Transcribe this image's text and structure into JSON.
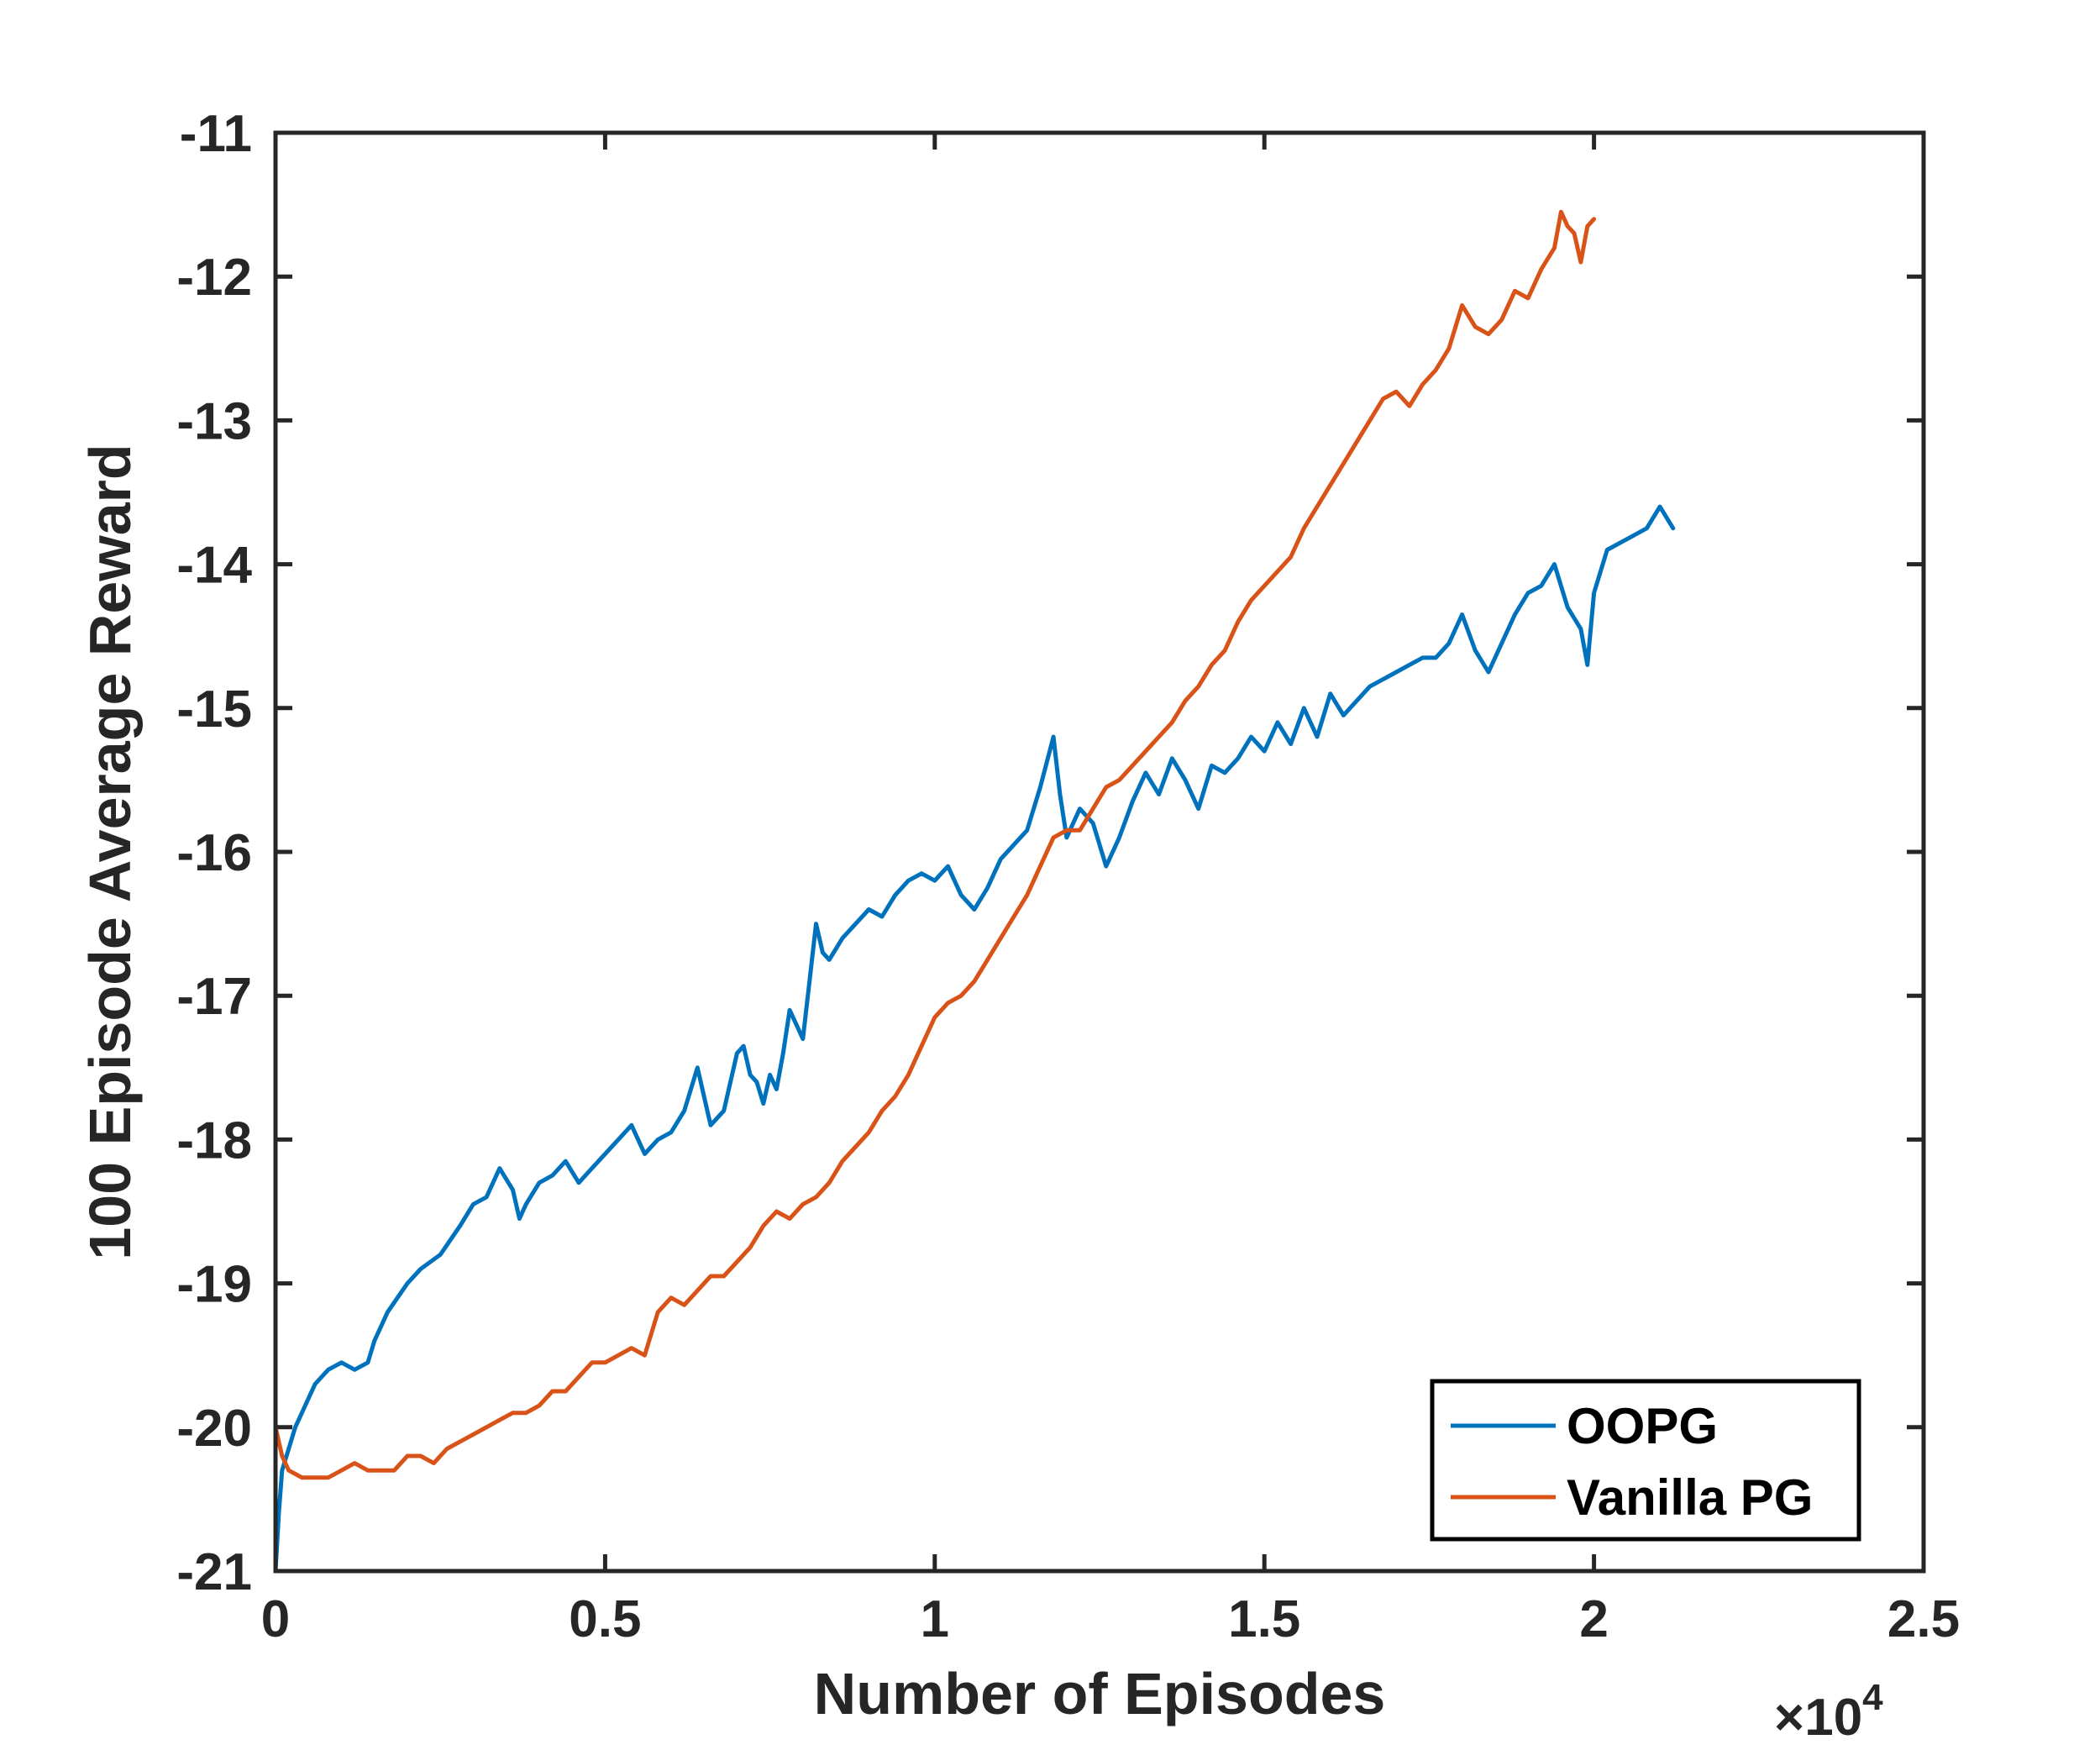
{
  "chart_data": {
    "type": "line",
    "xlabel": "Number of Episodes",
    "ylabel": "100 Episode Average Reward",
    "x_multiplier_label": "×10",
    "x_multiplier_exponent": "4",
    "xlim": [
      0,
      2.5
    ],
    "ylim": [
      -21,
      -11
    ],
    "xticks": [
      "0",
      "0.5",
      "1",
      "1.5",
      "2",
      "2.5"
    ],
    "yticks": [
      "-11",
      "-12",
      "-13",
      "-14",
      "-15",
      "-16",
      "-17",
      "-18",
      "-19",
      "-20",
      "-21"
    ],
    "grid": false,
    "legend_position": "bottom-right",
    "series": [
      {
        "name": "OOPG",
        "color": "#0072BD",
        "x": [
          0,
          0.005,
          0.01,
          0.02,
          0.03,
          0.04,
          0.05,
          0.06,
          0.08,
          0.1,
          0.12,
          0.14,
          0.15,
          0.17,
          0.2,
          0.22,
          0.25,
          0.28,
          0.3,
          0.32,
          0.34,
          0.36,
          0.37,
          0.38,
          0.4,
          0.42,
          0.44,
          0.46,
          0.48,
          0.5,
          0.52,
          0.54,
          0.56,
          0.58,
          0.6,
          0.62,
          0.64,
          0.66,
          0.68,
          0.7,
          0.71,
          0.72,
          0.73,
          0.74,
          0.75,
          0.76,
          0.77,
          0.78,
          0.79,
          0.8,
          0.81,
          0.82,
          0.83,
          0.84,
          0.86,
          0.88,
          0.9,
          0.92,
          0.94,
          0.96,
          0.98,
          1.0,
          1.02,
          1.04,
          1.06,
          1.08,
          1.1,
          1.12,
          1.14,
          1.16,
          1.18,
          1.19,
          1.2,
          1.22,
          1.24,
          1.26,
          1.28,
          1.3,
          1.32,
          1.34,
          1.36,
          1.38,
          1.4,
          1.42,
          1.44,
          1.46,
          1.48,
          1.5,
          1.52,
          1.54,
          1.56,
          1.58,
          1.6,
          1.62,
          1.64,
          1.66,
          1.68,
          1.7,
          1.72,
          1.74,
          1.76,
          1.78,
          1.8,
          1.82,
          1.84,
          1.86,
          1.88,
          1.9,
          1.92,
          1.94,
          1.96,
          1.98,
          1.99,
          2.0,
          2.02,
          2.04,
          2.06,
          2.08,
          2.1,
          2.12
        ],
        "y": [
          -21.0,
          -20.6,
          -20.3,
          -20.15,
          -20.0,
          -19.9,
          -19.8,
          -19.7,
          -19.6,
          -19.55,
          -19.6,
          -19.55,
          -19.4,
          -19.2,
          -19.0,
          -18.9,
          -18.8,
          -18.6,
          -18.45,
          -18.4,
          -18.2,
          -18.35,
          -18.55,
          -18.45,
          -18.3,
          -18.25,
          -18.15,
          -18.3,
          -18.2,
          -18.1,
          -18.0,
          -17.9,
          -18.1,
          -18.0,
          -17.95,
          -17.8,
          -17.5,
          -17.9,
          -17.8,
          -17.4,
          -17.35,
          -17.55,
          -17.6,
          -17.75,
          -17.55,
          -17.65,
          -17.4,
          -17.1,
          -17.2,
          -17.3,
          -16.9,
          -16.5,
          -16.7,
          -16.75,
          -16.6,
          -16.5,
          -16.4,
          -16.45,
          -16.3,
          -16.2,
          -16.15,
          -16.2,
          -16.1,
          -16.3,
          -16.4,
          -16.25,
          -16.05,
          -15.95,
          -15.85,
          -15.55,
          -15.2,
          -15.6,
          -15.9,
          -15.7,
          -15.8,
          -16.1,
          -15.9,
          -15.65,
          -15.45,
          -15.6,
          -15.35,
          -15.5,
          -15.7,
          -15.4,
          -15.45,
          -15.35,
          -15.2,
          -15.3,
          -15.1,
          -15.25,
          -15.0,
          -15.2,
          -14.9,
          -15.05,
          -14.95,
          -14.85,
          -14.8,
          -14.75,
          -14.7,
          -14.65,
          -14.65,
          -14.55,
          -14.35,
          -14.6,
          -14.75,
          -14.55,
          -14.35,
          -14.2,
          -14.15,
          -14.0,
          -14.3,
          -14.45,
          -14.7,
          -14.2,
          -13.9,
          -13.85,
          -13.8,
          -13.75,
          -13.6,
          -13.75
        ]
      },
      {
        "name": "Vanilla PG",
        "color": "#D95319",
        "x": [
          0,
          0.01,
          0.02,
          0.04,
          0.06,
          0.08,
          0.1,
          0.12,
          0.14,
          0.16,
          0.18,
          0.2,
          0.22,
          0.24,
          0.26,
          0.28,
          0.3,
          0.32,
          0.34,
          0.36,
          0.38,
          0.4,
          0.42,
          0.44,
          0.46,
          0.48,
          0.5,
          0.52,
          0.54,
          0.56,
          0.58,
          0.6,
          0.62,
          0.64,
          0.66,
          0.68,
          0.7,
          0.72,
          0.74,
          0.76,
          0.78,
          0.8,
          0.82,
          0.84,
          0.86,
          0.88,
          0.9,
          0.92,
          0.94,
          0.96,
          0.98,
          1.0,
          1.02,
          1.04,
          1.06,
          1.08,
          1.1,
          1.12,
          1.14,
          1.16,
          1.18,
          1.2,
          1.22,
          1.24,
          1.26,
          1.28,
          1.3,
          1.32,
          1.34,
          1.36,
          1.38,
          1.4,
          1.42,
          1.44,
          1.46,
          1.48,
          1.5,
          1.52,
          1.54,
          1.56,
          1.58,
          1.6,
          1.62,
          1.64,
          1.66,
          1.68,
          1.7,
          1.72,
          1.74,
          1.76,
          1.78,
          1.8,
          1.82,
          1.84,
          1.86,
          1.88,
          1.9,
          1.92,
          1.94,
          1.95,
          1.96,
          1.97,
          1.98,
          1.99,
          2.0
        ],
        "y": [
          -20.0,
          -20.2,
          -20.3,
          -20.35,
          -20.35,
          -20.35,
          -20.3,
          -20.25,
          -20.3,
          -20.3,
          -20.3,
          -20.2,
          -20.2,
          -20.25,
          -20.15,
          -20.1,
          -20.05,
          -20.0,
          -19.95,
          -19.9,
          -19.9,
          -19.85,
          -19.75,
          -19.75,
          -19.65,
          -19.55,
          -19.55,
          -19.5,
          -19.45,
          -19.5,
          -19.2,
          -19.1,
          -19.15,
          -19.05,
          -18.95,
          -18.95,
          -18.85,
          -18.75,
          -18.6,
          -18.5,
          -18.55,
          -18.45,
          -18.4,
          -18.3,
          -18.15,
          -18.05,
          -17.95,
          -17.8,
          -17.7,
          -17.55,
          -17.35,
          -17.15,
          -17.05,
          -17.0,
          -16.9,
          -16.75,
          -16.6,
          -16.45,
          -16.3,
          -16.1,
          -15.9,
          -15.85,
          -15.85,
          -15.7,
          -15.55,
          -15.5,
          -15.4,
          -15.3,
          -15.2,
          -15.1,
          -14.95,
          -14.85,
          -14.7,
          -14.6,
          -14.4,
          -14.25,
          -14.15,
          -14.05,
          -13.95,
          -13.75,
          -13.6,
          -13.45,
          -13.3,
          -13.15,
          -13.0,
          -12.85,
          -12.8,
          -12.9,
          -12.75,
          -12.65,
          -12.5,
          -12.2,
          -12.35,
          -12.4,
          -12.3,
          -12.1,
          -12.15,
          -11.95,
          -11.8,
          -11.55,
          -11.65,
          -11.7,
          -11.9,
          -11.65,
          -11.6
        ]
      }
    ]
  }
}
